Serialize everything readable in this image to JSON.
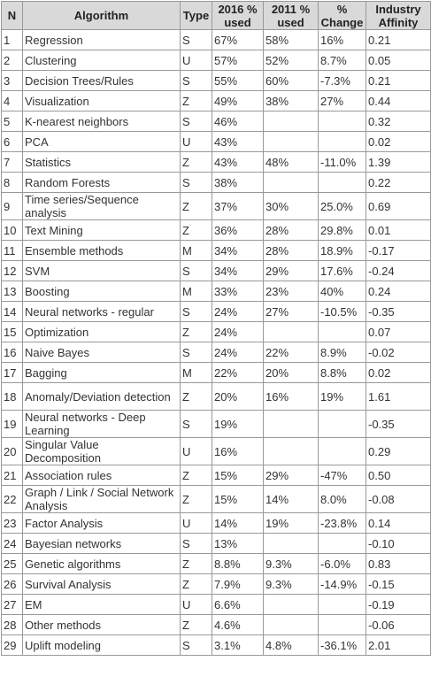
{
  "header": {
    "n": "N",
    "algorithm": "Algorithm",
    "type": "Type",
    "used2016": "2016 % used",
    "used2011": "2011 % used",
    "change": "% Change",
    "affinity": "Industry Affinity"
  },
  "rows": [
    {
      "n": "1",
      "algorithm": "Regression",
      "type": "S",
      "used2016": "67%",
      "used2011": "58%",
      "change": "16%",
      "affinity": "0.21"
    },
    {
      "n": "2",
      "algorithm": "Clustering",
      "type": "U",
      "used2016": "57%",
      "used2011": "52%",
      "change": "8.7%",
      "affinity": "0.05"
    },
    {
      "n": "3",
      "algorithm": "Decision Trees/Rules",
      "type": "S",
      "used2016": "55%",
      "used2011": "60%",
      "change": "-7.3%",
      "affinity": "0.21"
    },
    {
      "n": "4",
      "algorithm": "Visualization",
      "type": "Z",
      "used2016": "49%",
      "used2011": "38%",
      "change": "27%",
      "affinity": "0.44"
    },
    {
      "n": "5",
      "algorithm": "K-nearest neighbors",
      "type": "S",
      "used2016": "46%",
      "used2011": "",
      "change": "",
      "affinity": "0.32"
    },
    {
      "n": "6",
      "algorithm": "PCA",
      "type": "U",
      "used2016": "43%",
      "used2011": "",
      "change": "",
      "affinity": "0.02"
    },
    {
      "n": "7",
      "algorithm": "Statistics",
      "type": "Z",
      "used2016": "43%",
      "used2011": "48%",
      "change": "-11.0%",
      "affinity": "1.39"
    },
    {
      "n": "8",
      "algorithm": "Random Forests",
      "type": "S",
      "used2016": "38%",
      "used2011": "",
      "change": "",
      "affinity": "0.22"
    },
    {
      "n": "9",
      "algorithm": "Time series/Sequence analysis",
      "type": "Z",
      "used2016": "37%",
      "used2011": "30%",
      "change": "25.0%",
      "affinity": "0.69"
    },
    {
      "n": "10",
      "algorithm": "Text Mining",
      "type": "Z",
      "used2016": "36%",
      "used2011": "28%",
      "change": "29.8%",
      "affinity": "0.01"
    },
    {
      "n": "11",
      "algorithm": "Ensemble methods",
      "type": "M",
      "used2016": "34%",
      "used2011": "28%",
      "change": "18.9%",
      "affinity": "-0.17"
    },
    {
      "n": "12",
      "algorithm": "SVM",
      "type": "S",
      "used2016": "34%",
      "used2011": "29%",
      "change": "17.6%",
      "affinity": "-0.24"
    },
    {
      "n": "13",
      "algorithm": "Boosting",
      "type": "M",
      "used2016": "33%",
      "used2011": "23%",
      "change": "40%",
      "affinity": "0.24"
    },
    {
      "n": "14",
      "algorithm": "Neural networks - regular",
      "type": "S",
      "used2016": "24%",
      "used2011": "27%",
      "change": "-10.5%",
      "affinity": "-0.35"
    },
    {
      "n": "15",
      "algorithm": "Optimization",
      "type": "Z",
      "used2016": "24%",
      "used2011": "",
      "change": "",
      "affinity": "0.07"
    },
    {
      "n": "16",
      "algorithm": "Naive Bayes",
      "type": "S",
      "used2016": "24%",
      "used2011": "22%",
      "change": "8.9%",
      "affinity": "-0.02"
    },
    {
      "n": "17",
      "algorithm": "Bagging",
      "type": "M",
      "used2016": "22%",
      "used2011": "20%",
      "change": "8.8%",
      "affinity": "0.02"
    },
    {
      "n": "18",
      "algorithm": "Anomaly/Deviation detection",
      "type": "Z",
      "used2016": "20%",
      "used2011": "16%",
      "change": "19%",
      "affinity": "1.61"
    },
    {
      "n": "19",
      "algorithm": "Neural networks - Deep Learning",
      "type": "S",
      "used2016": "19%",
      "used2011": "",
      "change": "",
      "affinity": "-0.35"
    },
    {
      "n": "20",
      "algorithm": "Singular Value Decomposition",
      "type": "U",
      "used2016": "16%",
      "used2011": "",
      "change": "",
      "affinity": "0.29"
    },
    {
      "n": "21",
      "algorithm": "Association rules",
      "type": "Z",
      "used2016": "15%",
      "used2011": "29%",
      "change": "-47%",
      "affinity": "0.50"
    },
    {
      "n": "22",
      "algorithm": "Graph / Link / Social Network Analysis",
      "type": "Z",
      "used2016": "15%",
      "used2011": "14%",
      "change": "8.0%",
      "affinity": "-0.08"
    },
    {
      "n": "23",
      "algorithm": "Factor Analysis",
      "type": "U",
      "used2016": "14%",
      "used2011": "19%",
      "change": "-23.8%",
      "affinity": "0.14"
    },
    {
      "n": "24",
      "algorithm": "Bayesian networks",
      "type": "S",
      "used2016": "13%",
      "used2011": "",
      "change": "",
      "affinity": "-0.10"
    },
    {
      "n": "25",
      "algorithm": "Genetic algorithms",
      "type": "Z",
      "used2016": "8.8%",
      "used2011": "9.3%",
      "change": "-6.0%",
      "affinity": "0.83"
    },
    {
      "n": "26",
      "algorithm": "Survival Analysis",
      "type": "Z",
      "used2016": "7.9%",
      "used2011": "9.3%",
      "change": "-14.9%",
      "affinity": "-0.15"
    },
    {
      "n": "27",
      "algorithm": "EM",
      "type": "U",
      "used2016": "6.6%",
      "used2011": "",
      "change": "",
      "affinity": "-0.19"
    },
    {
      "n": "28",
      "algorithm": "Other methods",
      "type": "Z",
      "used2016": "4.6%",
      "used2011": "",
      "change": "",
      "affinity": "-0.06"
    },
    {
      "n": "29",
      "algorithm": "Uplift modeling",
      "type": "S",
      "used2016": "3.1%",
      "used2011": "4.8%",
      "change": "-36.1%",
      "affinity": "2.01"
    }
  ]
}
